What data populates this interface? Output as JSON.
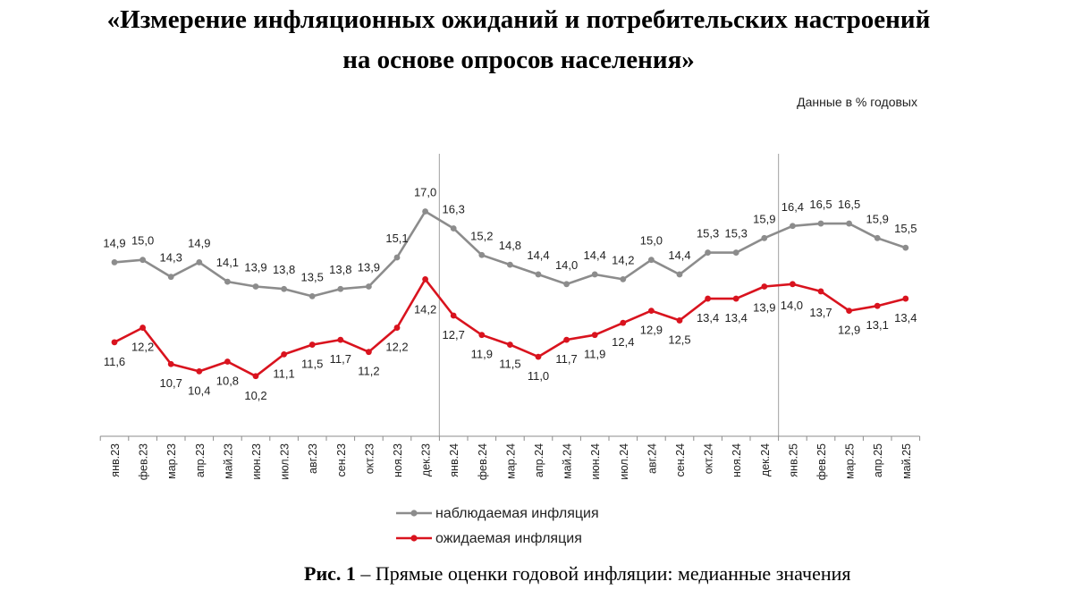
{
  "title": {
    "line1": "«Измерение инфляционных ожиданий и потребительских настроений",
    "line2": "на основе опросов населения»"
  },
  "units_note": "Данные в % годовых",
  "caption": {
    "label": "Рис. 1",
    "text": " – Прямые оценки годовой инфляции: медианные значения"
  },
  "chart_data": {
    "type": "line",
    "categories": [
      "янв.23",
      "фев.23",
      "мар.23",
      "апр.23",
      "май.23",
      "июн.23",
      "июл.23",
      "авг.23",
      "сен.23",
      "окт.23",
      "ноя.23",
      "дек.23",
      "янв.24",
      "фев.24",
      "мар.24",
      "апр.24",
      "май.24",
      "июн.24",
      "июл.24",
      "авг.24",
      "сен.24",
      "окт.24",
      "ноя.24",
      "дек.24",
      "янв.25",
      "фев.25",
      "мар.25",
      "апр.25",
      "май.25"
    ],
    "series": [
      {
        "name": "наблюдаемая инфляция",
        "color": "#8c8c8c",
        "values": [
          14.9,
          15.0,
          14.3,
          14.9,
          14.1,
          13.9,
          13.8,
          13.5,
          13.8,
          13.9,
          15.1,
          17.0,
          16.3,
          15.2,
          14.8,
          14.4,
          14.0,
          14.4,
          14.2,
          15.0,
          14.4,
          15.3,
          15.3,
          15.9,
          16.4,
          16.5,
          16.5,
          15.9,
          15.5
        ],
        "labels": [
          "14,9",
          "15,0",
          "14,3",
          "14,9",
          "14,1",
          "13,9",
          "13,8",
          "13,5",
          "13,8",
          "13,9",
          "15,1",
          "17,0",
          "16,3",
          "15,2",
          "14,8",
          "14,4",
          "14,0",
          "14,4",
          "14,2",
          "15,0",
          "14,4",
          "15,3",
          "15,3",
          "15,9",
          "16,4",
          "16,5",
          "16,5",
          "15,9",
          "15,5"
        ]
      },
      {
        "name": "ожидаемая инфляция",
        "color": "#d9131e",
        "values": [
          11.6,
          12.2,
          10.7,
          10.4,
          10.8,
          10.2,
          11.1,
          11.5,
          11.7,
          11.2,
          12.2,
          14.2,
          12.7,
          11.9,
          11.5,
          11.0,
          11.7,
          11.9,
          12.4,
          12.9,
          12.5,
          13.4,
          13.4,
          13.9,
          14.0,
          13.7,
          12.9,
          13.1,
          13.4
        ],
        "labels": [
          "11,6",
          "12,2",
          "10,7",
          "10,4",
          "10,8",
          "10,2",
          "11,1",
          "11,5",
          "11,7",
          "11,2",
          "12,2",
          "14,2",
          "12,7",
          "11,9",
          "11,5",
          "11,0",
          "11,7",
          "11,9",
          "12,4",
          "12,9",
          "12,5",
          "13,4",
          "13,4",
          "13,9",
          "14,0",
          "13,7",
          "12,9",
          "13,1",
          "13,4"
        ]
      }
    ],
    "year_separators_after": [
      "дек.23",
      "дек.24"
    ],
    "legend": "bottom-left",
    "grid": false
  }
}
